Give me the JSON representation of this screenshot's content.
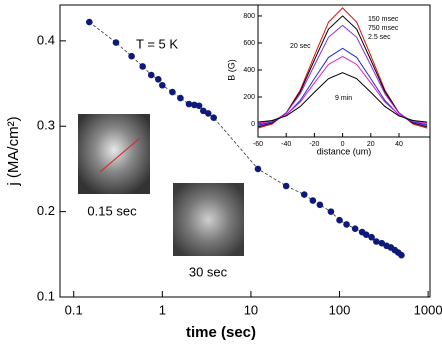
{
  "chart_data": [
    {
      "type": "scatter",
      "xlabel": "time (sec)",
      "ylabel": "j (MA/cm²)",
      "log_x": true,
      "color": "#0d1a7a",
      "xlim": [
        0.07,
        1050
      ],
      "ylim": [
        0.1,
        0.442
      ],
      "xticks": [
        {
          "value": 0.1,
          "label": "0.1"
        },
        1,
        10,
        100,
        1000
      ],
      "yticks": [
        {
          "value": 0.1,
          "label": "0.1"
        },
        {
          "value": 0.2,
          "label": "0.2"
        },
        {
          "value": 0.3,
          "label": "0.3"
        },
        {
          "value": 0.4,
          "label": "0.4"
        }
      ],
      "annotations": [
        "T = 5 K",
        "0.15 sec",
        "30 sec"
      ],
      "x": [
        0.15,
        0.3,
        0.45,
        0.6,
        0.75,
        0.9,
        1.0,
        1.3,
        1.6,
        2.0,
        2.3,
        2.6,
        2.9,
        3.3,
        3.8,
        12,
        25,
        40,
        50,
        60,
        80,
        100,
        120,
        150,
        180,
        200,
        230,
        260,
        300,
        340,
        380,
        420,
        460,
        500
      ],
      "values": [
        0.422,
        0.398,
        0.382,
        0.37,
        0.36,
        0.355,
        0.348,
        0.34,
        0.333,
        0.326,
        0.325,
        0.324,
        0.318,
        0.315,
        0.31,
        0.25,
        0.23,
        0.22,
        0.213,
        0.208,
        0.2,
        0.19,
        0.185,
        0.18,
        0.176,
        0.173,
        0.17,
        0.165,
        0.163,
        0.16,
        0.158,
        0.155,
        0.152,
        0.149
      ]
    },
    {
      "type": "line",
      "xlabel": "distance (um)",
      "ylabel": "B (G)",
      "xlim": [
        -60,
        62
      ],
      "ylim": [
        -96,
        881
      ],
      "xticks": [
        -60,
        -40,
        -20,
        0,
        20,
        40
      ],
      "yticks": [
        0,
        200,
        400,
        600,
        800
      ],
      "annotations": [
        "150 msec",
        "750 msec",
        "2.5 sec",
        "20 sec",
        "9 min"
      ],
      "x": [
        -60,
        -50,
        -40,
        -30,
        -20,
        -10,
        0,
        10,
        20,
        30,
        40,
        50,
        60
      ],
      "series": [
        {
          "color": "#e01010",
          "values": [
            -30,
            0,
            82,
            252,
            506,
            754,
            860,
            754,
            506,
            252,
            82,
            0,
            -30
          ]
        },
        {
          "color": "#000000",
          "values": [
            -21,
            7,
            82,
            240,
            474,
            702,
            800,
            702,
            474,
            240,
            82,
            7,
            -21
          ]
        },
        {
          "color": "#8a2be2",
          "values": [
            -12,
            13,
            81,
            224,
            435,
            642,
            730,
            642,
            435,
            224,
            81,
            13,
            -12
          ]
        },
        {
          "color": "#2030d0",
          "values": [
            -4,
            15,
            67,
            175,
            336,
            493,
            560,
            493,
            336,
            175,
            67,
            15,
            -4
          ]
        },
        {
          "color": "#e020c0",
          "values": [
            5,
            22,
            68,
            163,
            304,
            441,
            500,
            441,
            304,
            163,
            68,
            22,
            5
          ]
        },
        {
          "color": "#000000",
          "values": [
            14,
            26,
            60,
            130,
            235,
            336,
            380,
            336,
            235,
            130,
            60,
            26,
            14
          ]
        }
      ]
    }
  ]
}
